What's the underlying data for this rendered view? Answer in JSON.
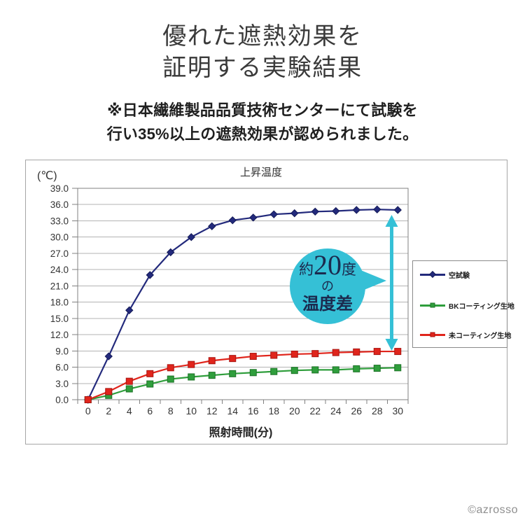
{
  "page": {
    "title_lines": [
      "優れた遮熱効果を",
      "証明する実験結果"
    ],
    "note_lines": [
      "※日本繊維製品品質技術センターにて試験を",
      "行い35%以上の遮熱効果が認められました。"
    ],
    "copyright": "©azrosso"
  },
  "colors": {
    "grid": "#b3b3b3",
    "plot_border": "#808080",
    "chart_border": "#a6a6a6",
    "axis_text": "#333333",
    "copyright": "#8f8f8f"
  },
  "annotation": {
    "big_text_prefix": "約",
    "big_text_number": "20",
    "big_text_suffix": "度",
    "mid_text": "の",
    "bottom_text": "温度差",
    "bubble_color": "#35c0d6",
    "arrow_color": "#35c0d6",
    "text_color": "#1b2a4e"
  },
  "chart_data": {
    "type": "line",
    "title": "上昇温度",
    "ylabel": "(℃)",
    "xlabel": "照射時間(分)",
    "x": [
      0,
      2,
      4,
      6,
      8,
      10,
      12,
      14,
      16,
      18,
      20,
      22,
      24,
      26,
      28,
      30
    ],
    "ylim": [
      0,
      39
    ],
    "ytick_step": 3,
    "grid": true,
    "legend_position": "right",
    "series": [
      {
        "key": "blank-test",
        "name": "空試験",
        "color": "#232a7c",
        "edge": "#141a57",
        "marker": "diamond",
        "values": [
          0,
          8,
          16.5,
          23,
          27.2,
          30,
          32,
          33.1,
          33.6,
          34.2,
          34.4,
          34.7,
          34.8,
          35,
          35.1,
          35
        ]
      },
      {
        "key": "bk-coated",
        "name": "BKコーティング生地",
        "color": "#2f9e3c",
        "edge": "#1c7226",
        "marker": "square",
        "values": [
          0,
          0.8,
          2,
          2.9,
          3.8,
          4.2,
          4.5,
          4.8,
          5,
          5.2,
          5.4,
          5.5,
          5.5,
          5.7,
          5.8,
          5.9
        ]
      },
      {
        "key": "uncoated",
        "name": "未コーティング生地",
        "color": "#e0251c",
        "edge": "#a81410",
        "marker": "square",
        "values": [
          0,
          1.5,
          3.4,
          4.8,
          5.9,
          6.5,
          7.2,
          7.6,
          8,
          8.2,
          8.4,
          8.5,
          8.7,
          8.8,
          8.9,
          8.9
        ]
      }
    ]
  }
}
